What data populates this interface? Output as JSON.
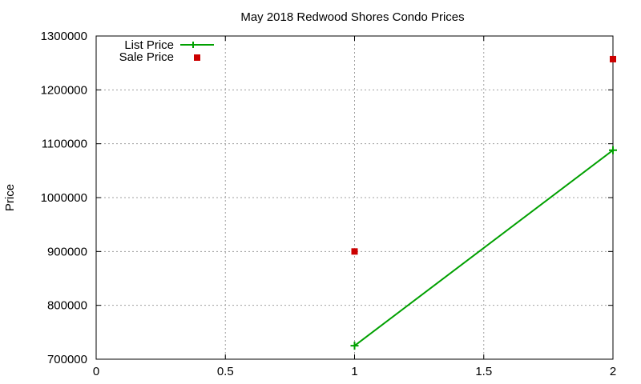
{
  "chart_data": {
    "type": "line",
    "title": "May 2018 Redwood Shores Condo Prices",
    "xlabel": "",
    "ylabel": "Price",
    "xlim": [
      0,
      2
    ],
    "ylim": [
      700000,
      1300000
    ],
    "x_ticks": [
      "0",
      "0.5",
      "1",
      "1.5",
      "2"
    ],
    "y_ticks": [
      "700000",
      "800000",
      "900000",
      "1000000",
      "1100000",
      "1200000",
      "1300000"
    ],
    "grid": true,
    "legend_position": "top-left",
    "series": [
      {
        "name": "List Price",
        "style": "line+points",
        "color": "#00a000",
        "x": [
          1,
          2
        ],
        "values": [
          725000,
          1088000
        ]
      },
      {
        "name": "Sale Price",
        "style": "points",
        "color": "#cc0000",
        "x": [
          1,
          2
        ],
        "values": [
          900000,
          1257000
        ]
      }
    ]
  },
  "legend": {
    "list_label": "List Price",
    "sale_label": "Sale Price"
  }
}
